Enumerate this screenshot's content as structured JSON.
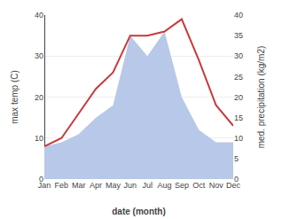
{
  "chart_data": {
    "type": "line",
    "categories": [
      "Jan",
      "Feb",
      "Mar",
      "Apr",
      "May",
      "Jun",
      "Jul",
      "Aug",
      "Sep",
      "Oct",
      "Nov",
      "Dec"
    ],
    "xlabel": "date (month)",
    "ylabel": "max temp (C)",
    "y2label": "med. precipitation (kg/m2)",
    "series": [
      {
        "type": "area",
        "color": "#b8c8e8",
        "axis": "y2",
        "values": [
          8,
          9,
          11,
          15,
          18,
          35,
          30,
          36,
          20,
          12,
          9,
          9
        ]
      },
      {
        "type": "line",
        "color": "#c8393b",
        "values": [
          8,
          10,
          16,
          22,
          26,
          35,
          35,
          36,
          39,
          29,
          18,
          13
        ]
      }
    ],
    "ylim": [
      0,
      40
    ],
    "yticks": [
      0,
      10,
      20,
      30,
      40
    ],
    "y2lim": [
      0,
      40
    ],
    "y2ticks": [
      0,
      5,
      10,
      15,
      20,
      25,
      30,
      35,
      40
    ],
    "grid": true
  }
}
